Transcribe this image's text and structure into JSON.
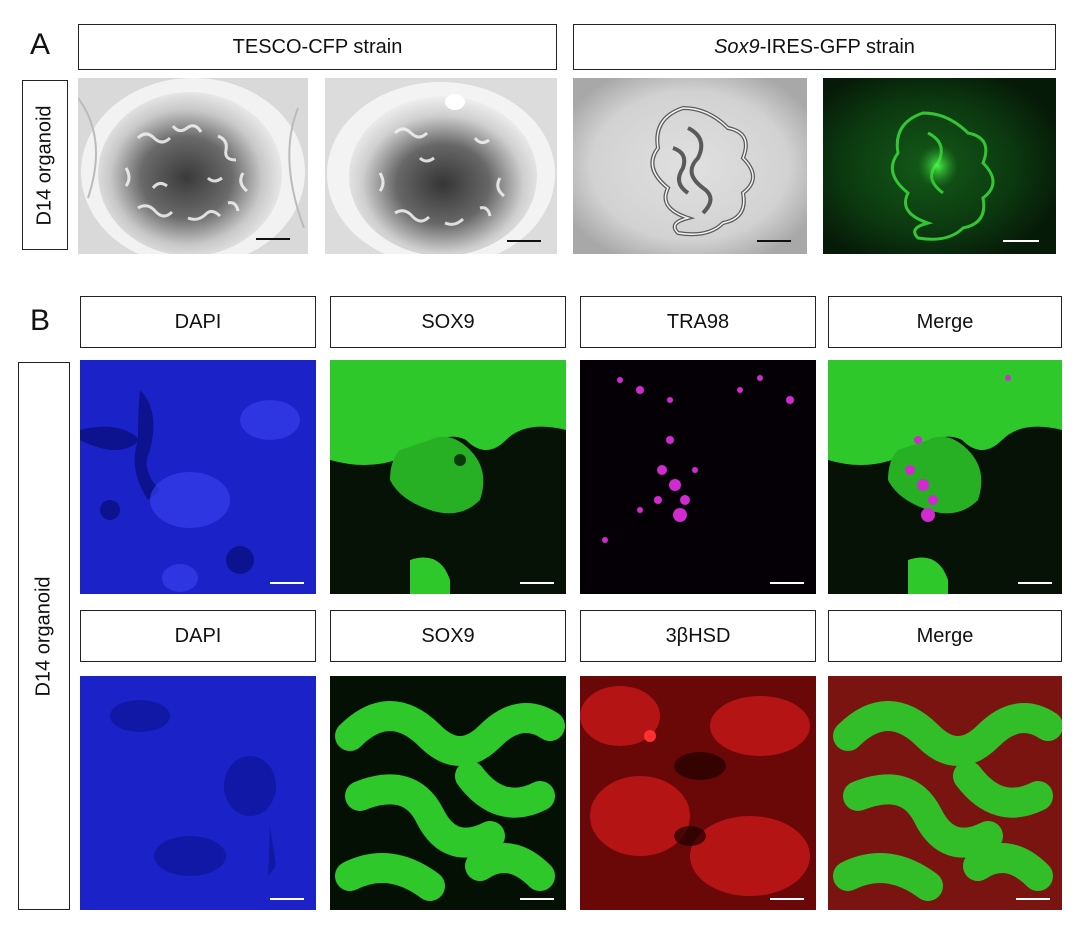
{
  "panel_a": {
    "letter": "A",
    "side_label": "D14 organoid",
    "header_left": "TESCO-CFP strain",
    "header_right_italic": "Sox9",
    "header_right_rest": "-IRES-GFP strain",
    "images": [
      {
        "kind": "brightfield"
      },
      {
        "kind": "brightfield"
      },
      {
        "kind": "brightfield-loop"
      },
      {
        "kind": "gfp-fluorescence"
      }
    ]
  },
  "panel_b": {
    "letter": "B",
    "side_label": "D14 organoid",
    "row1_labels": [
      "DAPI",
      "SOX9",
      "TRA98",
      "Merge"
    ],
    "row2_labels": [
      "DAPI",
      "SOX9",
      "3βHSD",
      "Merge"
    ],
    "colors": {
      "dapi": "#1a22c8",
      "sox9": "#2ec82a",
      "tra98": "#d02ad0",
      "hsd": "#c81818"
    }
  }
}
